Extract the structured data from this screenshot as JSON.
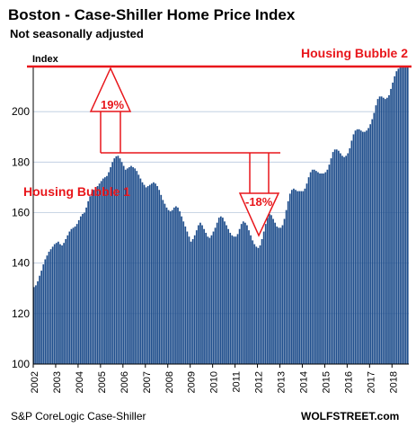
{
  "chart_data": {
    "type": "bar",
    "title": "Boston - Case-Shiller Home Price Index",
    "subtitle": "Not seasonally adjusted",
    "ylabel": "Index",
    "ylim": [
      100,
      220
    ],
    "yticks": [
      100,
      120,
      140,
      160,
      180,
      200
    ],
    "grid": true,
    "xticks": [
      "2002",
      "2003",
      "2004",
      "2005",
      "2006",
      "2007",
      "2008",
      "2009",
      "2010",
      "2011",
      "2012",
      "2013",
      "2014",
      "2015",
      "2016",
      "2017",
      "2018"
    ],
    "x_start": "2002-01",
    "x_end": "2018-09",
    "bar_color": "#1f4e8c",
    "values": [
      130.5,
      131.2,
      132.8,
      135,
      137,
      139.5,
      141.5,
      143,
      144.5,
      145.5,
      146.5,
      147.5,
      148,
      148.5,
      147.5,
      147,
      148,
      149.5,
      151,
      152.5,
      153.5,
      154,
      154.5,
      155.5,
      157,
      158.5,
      159.5,
      160,
      162,
      164.5,
      166.5,
      168,
      169,
      170,
      170.5,
      171.5,
      172.5,
      173.5,
      174,
      174.5,
      176,
      178,
      180,
      181.5,
      182.3,
      182.5,
      181.5,
      180,
      178.5,
      177,
      177.5,
      178,
      178.5,
      178,
      177.5,
      176.5,
      175,
      173.5,
      172,
      171,
      170,
      170.5,
      171,
      171.5,
      172,
      171.5,
      170.5,
      169,
      167,
      165,
      163.5,
      162,
      161,
      160.5,
      161,
      162,
      162.5,
      162,
      160.5,
      158.5,
      156.5,
      154.5,
      152.5,
      150.5,
      148.5,
      149.5,
      151,
      153,
      155,
      156,
      155,
      153.5,
      152,
      150.5,
      150,
      151,
      152.5,
      154,
      156,
      158,
      158.5,
      158,
      156.5,
      155,
      153.5,
      152,
      151,
      150.5,
      150.5,
      151.5,
      153.5,
      155.5,
      156.5,
      156,
      155,
      153,
      151,
      149,
      147.5,
      146.5,
      146,
      147,
      149.5,
      152.5,
      155.5,
      158,
      159.5,
      159,
      157.5,
      156,
      154.5,
      154,
      154,
      155,
      157.5,
      161,
      164.5,
      167.5,
      169,
      169.5,
      169,
      168.5,
      168.5,
      168.5,
      168.5,
      169.5,
      171.5,
      174,
      176,
      177,
      177,
      176.5,
      176,
      175.5,
      175.5,
      175.5,
      176,
      177,
      179,
      181.5,
      184,
      185,
      185,
      184.5,
      183.5,
      182.5,
      182,
      182.5,
      183.5,
      185.5,
      188.5,
      191,
      192.5,
      193,
      193,
      192.5,
      192,
      192,
      192.5,
      193.5,
      195,
      197,
      199.5,
      202.5,
      205,
      206,
      206,
      205.5,
      205,
      205.5,
      206.5,
      209,
      211.5,
      214,
      216,
      217,
      217.5,
      217.5,
      217.5,
      217.5,
      217.5
    ],
    "annotations": [
      {
        "text": "Housing Bubble 1"
      },
      {
        "text": "Housing Bubble 2"
      },
      {
        "text": "19%"
      },
      {
        "text": "-18%"
      }
    ]
  },
  "footer": {
    "source": "S&P CoreLogic Case-Shiller",
    "brand": "WOLFSTREET.com"
  },
  "colors": {
    "bars": "#1f4e8c",
    "accent": "#e8161b",
    "grid": "#b9c9dd"
  }
}
